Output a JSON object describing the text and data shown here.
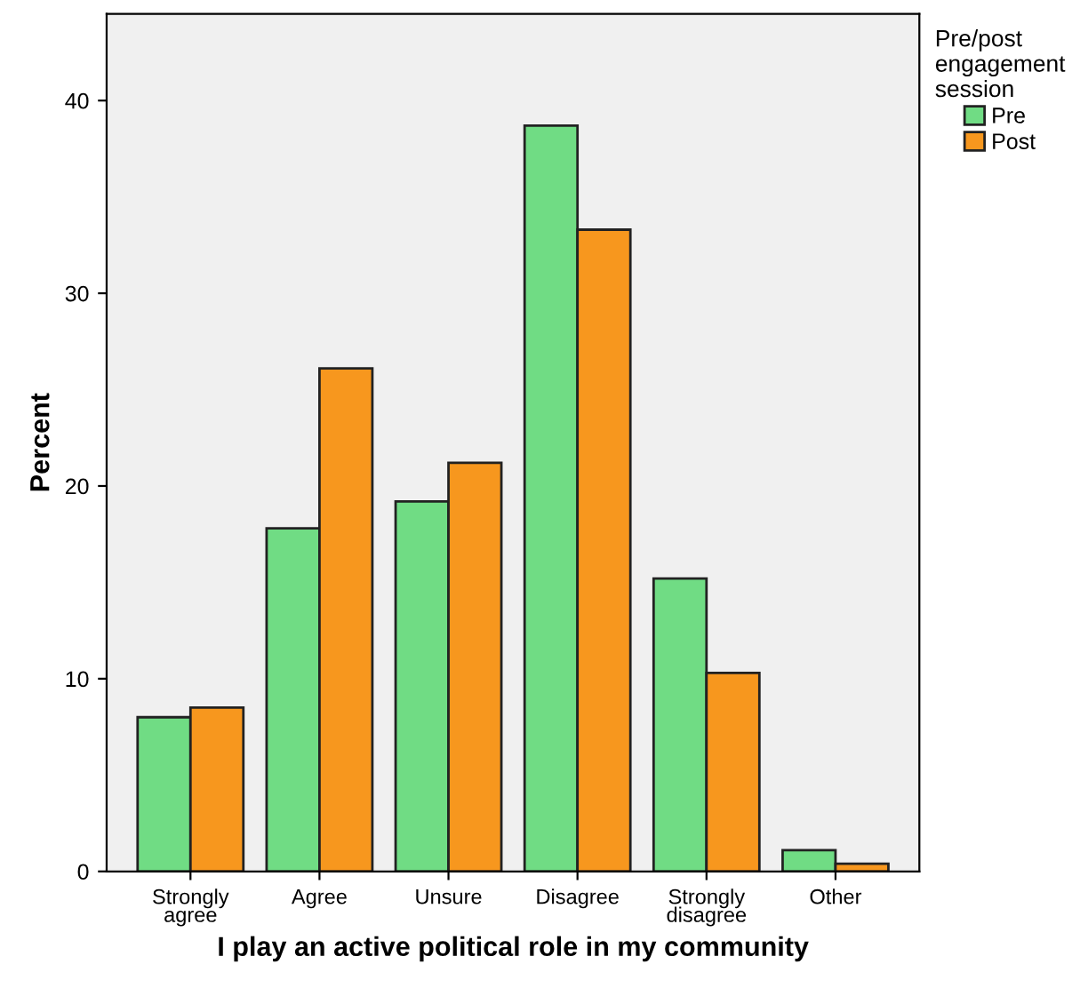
{
  "chart_data": {
    "type": "bar",
    "xlabel": "I play an active political role in my community",
    "ylabel": "Percent",
    "legend_title": "Pre/post\nengagement\nsession",
    "categories": [
      "Strongly\nagree",
      "Agree",
      "Unsure",
      "Disagree",
      "Strongly\ndisagree",
      "Other"
    ],
    "series": [
      {
        "name": "Pre",
        "color": "#70dc84",
        "values": [
          8.0,
          17.8,
          19.2,
          38.7,
          15.2,
          1.1
        ]
      },
      {
        "name": "Post",
        "color": "#f7971e",
        "values": [
          8.5,
          26.1,
          21.2,
          33.3,
          10.3,
          0.4
        ]
      }
    ],
    "ylim": [
      0,
      44.5
    ],
    "yticks": [
      0,
      10,
      20,
      30,
      40
    ],
    "grid": false,
    "legend": "top right"
  }
}
